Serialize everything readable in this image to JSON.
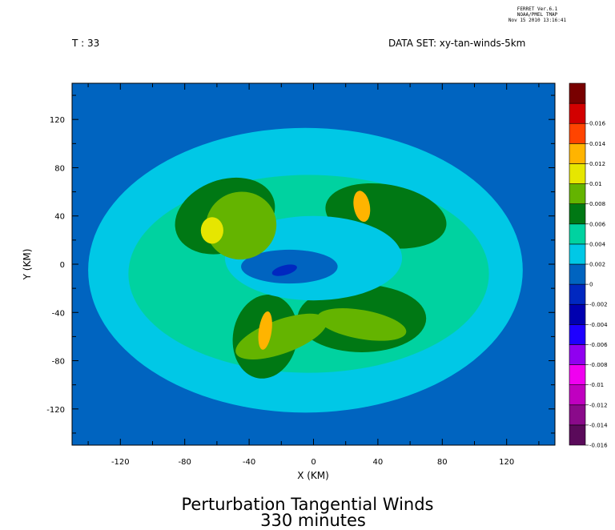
{
  "stamp": {
    "line1": "FERRET Ver.6.1",
    "line2": "NOAA/PMEL TMAP",
    "line3": "Nov 15 2010 13:16:41"
  },
  "header": {
    "time_label": "T : 33",
    "dataset_label": "DATA SET: xy-tan-winds-5km"
  },
  "chart_data": {
    "type": "heatmap",
    "title": "Perturbation Tangential Winds",
    "subtitle": "330 minutes",
    "xlabel": "X (KM)",
    "ylabel": "Y (KM)",
    "xlim": [
      -150,
      150
    ],
    "ylim": [
      -150,
      150
    ],
    "xticks": [
      -120,
      -80,
      -40,
      0,
      40,
      80,
      120
    ],
    "yticks": [
      -120,
      -80,
      -40,
      0,
      40,
      80,
      120
    ],
    "colorbar": {
      "levels": [
        -0.016,
        -0.014,
        -0.012,
        -0.01,
        -0.008,
        -0.006,
        -0.004,
        -0.002,
        0,
        0.002,
        0.004,
        0.006,
        0.008,
        0.01,
        0.012,
        0.014,
        0.016
      ],
      "labels": [
        "-0.016",
        "-0.014",
        "-0.012",
        "-0.01",
        "-0.008",
        "-0.006",
        "-0.004",
        "-0.002",
        "0",
        "0.002",
        "0.004",
        "0.006",
        "0.008",
        "0.01",
        "0.012",
        "0.014",
        "0.016"
      ],
      "colors": [
        "#5a0a5a",
        "#8a0a8a",
        "#c000c0",
        "#f000f0",
        "#9000f0",
        "#1e00ff",
        "#0000b0",
        "#0028c0",
        "#0064c0",
        "#00c8e6",
        "#00d2a0",
        "#007814",
        "#64b400",
        "#e6e600",
        "#ffb400",
        "#ff4400",
        "#d20000",
        "#780000"
      ]
    },
    "features": [
      {
        "x": -30,
        "y": -55,
        "value": 0.012,
        "label": "southwest maximum"
      },
      {
        "x": 30,
        "y": 48,
        "value": 0.012,
        "label": "northeast maximum"
      },
      {
        "x": -60,
        "y": 30,
        "value": 0.008,
        "label": "northwest yellow band"
      },
      {
        "x": -20,
        "y": -5,
        "value": -0.004,
        "label": "central minimum"
      }
    ]
  }
}
